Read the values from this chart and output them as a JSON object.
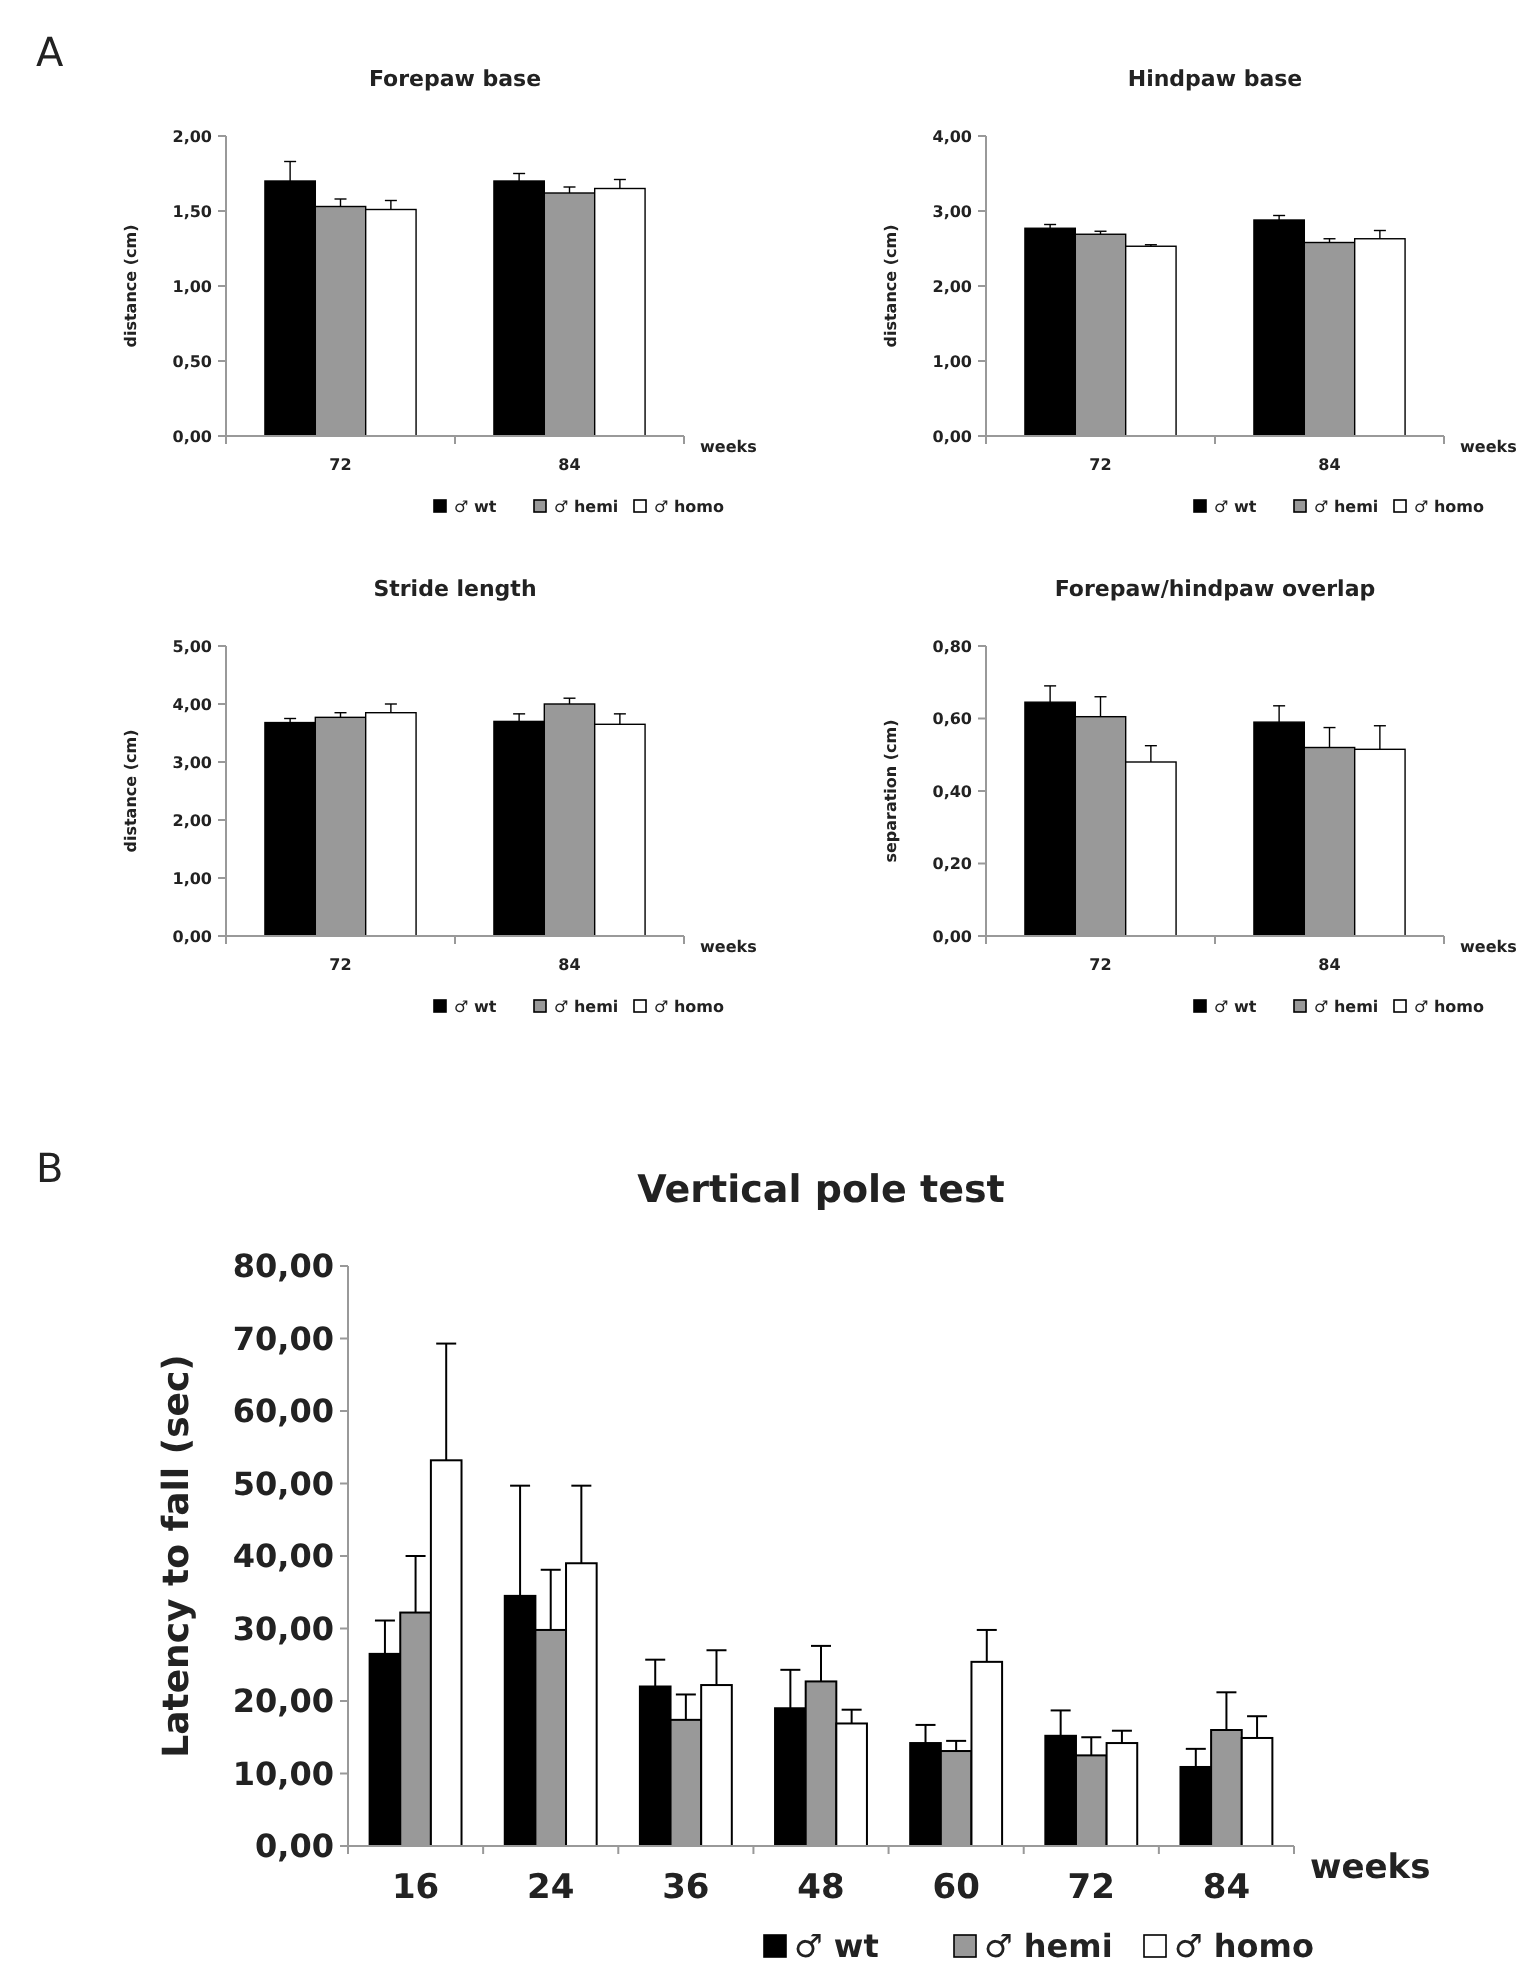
{
  "chart_data": [
    {
      "type": "bar",
      "title": "Forepaw base",
      "xlabel": "weeks",
      "ylabel": "distance (cm)",
      "annotations": [
        "A"
      ],
      "categories": [
        "72",
        "84"
      ],
      "ylim": [
        0,
        2
      ],
      "yticks": [
        {
          "value": 0,
          "label": "0,00"
        },
        {
          "value": 0.5,
          "label": "0,50"
        },
        {
          "value": 1,
          "label": "1,00"
        },
        {
          "value": 1.5,
          "label": "1,50"
        },
        {
          "value": 2,
          "label": "2,00"
        }
      ],
      "legend": "bottom right",
      "series": [
        {
          "name": "♂ wt",
          "color": "#000000",
          "values": [
            1.7,
            1.7
          ],
          "errors": [
            [
              1.7,
              1.83
            ],
            [
              1.7,
              1.75
            ]
          ]
        },
        {
          "name": "♂ hemi",
          "color": "#999999",
          "values": [
            1.53,
            1.62
          ],
          "errors": [
            [
              1.53,
              1.58
            ],
            [
              1.62,
              1.66
            ]
          ]
        },
        {
          "name": "♂ homo",
          "color": "#ffffff",
          "values": [
            1.51,
            1.65
          ],
          "errors": [
            [
              1.51,
              1.57
            ],
            [
              1.65,
              1.71
            ]
          ]
        }
      ]
    },
    {
      "type": "bar",
      "title": "Hindpaw base",
      "xlabel": "weeks",
      "ylabel": "distance (cm)",
      "categories": [
        "72",
        "84"
      ],
      "ylim": [
        0,
        4
      ],
      "yticks": [
        {
          "value": 0,
          "label": "0,00"
        },
        {
          "value": 1,
          "label": "1,00"
        },
        {
          "value": 2,
          "label": "2,00"
        },
        {
          "value": 3,
          "label": "3,00"
        },
        {
          "value": 4,
          "label": "4,00"
        }
      ],
      "legend": "bottom right",
      "series": [
        {
          "name": "♂ wt",
          "color": "#000000",
          "values": [
            2.77,
            2.88
          ],
          "errors": [
            [
              2.77,
              2.82
            ],
            [
              2.88,
              2.94
            ]
          ]
        },
        {
          "name": "♂ hemi",
          "color": "#999999",
          "values": [
            2.69,
            2.58
          ],
          "errors": [
            [
              2.69,
              2.73
            ],
            [
              2.58,
              2.63
            ]
          ]
        },
        {
          "name": "♂ homo",
          "color": "#ffffff",
          "values": [
            2.53,
            2.63
          ],
          "errors": [
            [
              2.53,
              2.55
            ],
            [
              2.63,
              2.74
            ]
          ]
        }
      ]
    },
    {
      "type": "bar",
      "title": "Stride length",
      "xlabel": "weeks",
      "ylabel": "distance (cm)",
      "categories": [
        "72",
        "84"
      ],
      "ylim": [
        0,
        5
      ],
      "yticks": [
        {
          "value": 0,
          "label": "0,00"
        },
        {
          "value": 1,
          "label": "1,00"
        },
        {
          "value": 2,
          "label": "2,00"
        },
        {
          "value": 3,
          "label": "3,00"
        },
        {
          "value": 4,
          "label": "4,00"
        },
        {
          "value": 5,
          "label": "5,00"
        }
      ],
      "legend": "bottom right",
      "series": [
        {
          "name": "♂ wt",
          "color": "#000000",
          "values": [
            3.68,
            3.7
          ],
          "errors": [
            [
              3.68,
              3.75
            ],
            [
              3.7,
              3.83
            ]
          ]
        },
        {
          "name": "♂ hemi",
          "color": "#999999",
          "values": [
            3.77,
            4.0
          ],
          "errors": [
            [
              3.77,
              3.85
            ],
            [
              4.0,
              4.1
            ]
          ]
        },
        {
          "name": "♂ homo",
          "color": "#ffffff",
          "values": [
            3.85,
            3.65
          ],
          "errors": [
            [
              3.85,
              4.0
            ],
            [
              3.65,
              3.83
            ]
          ]
        }
      ]
    },
    {
      "type": "bar",
      "title": "Forepaw/hindpaw overlap",
      "xlabel": "weeks",
      "ylabel": "separation (cm)",
      "categories": [
        "72",
        "84"
      ],
      "ylim": [
        0,
        0.8
      ],
      "yticks": [
        {
          "value": 0,
          "label": "0,00"
        },
        {
          "value": 0.2,
          "label": "0,20"
        },
        {
          "value": 0.4,
          "label": "0,40"
        },
        {
          "value": 0.6,
          "label": "0,60"
        },
        {
          "value": 0.8,
          "label": "0,80"
        }
      ],
      "legend": "bottom right",
      "series": [
        {
          "name": "♂ wt",
          "color": "#000000",
          "values": [
            0.645,
            0.59
          ],
          "errors": [
            [
              0.645,
              0.69
            ],
            [
              0.59,
              0.635
            ]
          ]
        },
        {
          "name": "♂ hemi",
          "color": "#999999",
          "values": [
            0.605,
            0.52
          ],
          "errors": [
            [
              0.605,
              0.66
            ],
            [
              0.52,
              0.575
            ]
          ]
        },
        {
          "name": "♂ homo",
          "color": "#ffffff",
          "values": [
            0.48,
            0.515
          ],
          "errors": [
            [
              0.48,
              0.525
            ],
            [
              0.515,
              0.58
            ]
          ]
        }
      ]
    },
    {
      "type": "bar",
      "title": "Vertical pole test",
      "xlabel": "weeks",
      "ylabel": "Latency to fall (sec)",
      "annotations": [
        "B"
      ],
      "categories": [
        "16",
        "24",
        "36",
        "48",
        "60",
        "72",
        "84"
      ],
      "ylim": [
        0,
        80
      ],
      "yticks": [
        {
          "value": 0,
          "label": "0,00"
        },
        {
          "value": 10,
          "label": "10,00"
        },
        {
          "value": 20,
          "label": "20,00"
        },
        {
          "value": 30,
          "label": "30,00"
        },
        {
          "value": 40,
          "label": "40,00"
        },
        {
          "value": 50,
          "label": "50,00"
        },
        {
          "value": 60,
          "label": "60,00"
        },
        {
          "value": 70,
          "label": "70,00"
        },
        {
          "value": 80,
          "label": "80,00"
        }
      ],
      "legend": "bottom right",
      "series": [
        {
          "name": "♂ wt",
          "color": "#000000",
          "values": [
            26.5,
            34.5,
            22.0,
            19.0,
            14.2,
            15.2,
            10.9
          ],
          "errors": [
            [
              26.5,
              31.1
            ],
            [
              34.5,
              49.7
            ],
            [
              22.0,
              25.7
            ],
            [
              19.0,
              24.3
            ],
            [
              14.2,
              16.7
            ],
            [
              15.2,
              18.7
            ],
            [
              10.9,
              13.4
            ]
          ]
        },
        {
          "name": "♂ hemi",
          "color": "#999999",
          "values": [
            32.2,
            29.8,
            17.4,
            22.7,
            13.1,
            12.5,
            16.0
          ],
          "errors": [
            [
              32.2,
              40.0
            ],
            [
              29.8,
              38.1
            ],
            [
              17.4,
              20.9
            ],
            [
              22.7,
              27.6
            ],
            [
              13.1,
              14.5
            ],
            [
              12.5,
              15.0
            ],
            [
              16.0,
              21.2
            ]
          ]
        },
        {
          "name": "♂ homo",
          "color": "#ffffff",
          "values": [
            53.2,
            39.0,
            22.2,
            16.9,
            25.4,
            14.2,
            14.9
          ],
          "errors": [
            [
              53.2,
              69.3
            ],
            [
              39.0,
              49.7
            ],
            [
              22.2,
              27.0
            ],
            [
              16.9,
              18.8
            ],
            [
              25.4,
              29.8
            ],
            [
              14.2,
              15.9
            ],
            [
              14.9,
              17.9
            ]
          ]
        }
      ]
    }
  ]
}
